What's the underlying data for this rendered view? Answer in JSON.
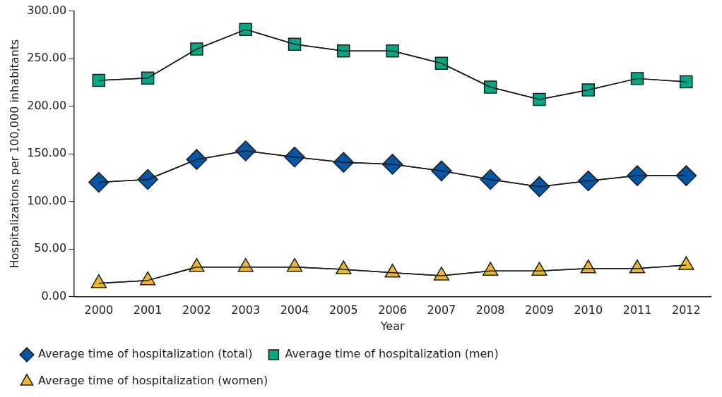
{
  "chart_data": {
    "type": "line",
    "xlabel": "Year",
    "ylabel": "Hospitalizations per 100,000 inhabitants",
    "categories": [
      "2000",
      "2001",
      "2002",
      "2003",
      "2004",
      "2005",
      "2006",
      "2007",
      "2008",
      "2009",
      "2010",
      "2011",
      "2012"
    ],
    "series": [
      {
        "name": "Average time of hospitalization (total)",
        "color": "#0057a6",
        "marker": "diamond",
        "values": [
          120,
          123,
          144,
          153,
          146.5,
          141,
          139,
          132,
          123,
          115.5,
          121.5,
          127,
          127
        ]
      },
      {
        "name": "Average time of hospitalization (men)",
        "color": "#00a884",
        "marker": "square",
        "values": [
          227,
          229.5,
          260,
          280.5,
          265,
          258,
          258,
          245,
          220,
          207,
          217,
          229,
          225.5
        ]
      },
      {
        "name": "Average time of hospitalization (women)",
        "color": "#f0b921",
        "marker": "triangle",
        "values": [
          14,
          17,
          31,
          31,
          31,
          28.5,
          25,
          22,
          27,
          27,
          29.5,
          29.5,
          33
        ]
      }
    ],
    "ylim": [
      0,
      300
    ],
    "yticks": [
      {
        "value": 0,
        "label": "0.00"
      },
      {
        "value": 50,
        "label": "50.00"
      },
      {
        "value": 100,
        "label": "100.00"
      },
      {
        "value": 150,
        "label": "150.00"
      },
      {
        "value": 200,
        "label": "200.00"
      },
      {
        "value": 250,
        "label": "250.00"
      },
      {
        "value": 300,
        "label": "300.00"
      }
    ],
    "grid": false,
    "legend": "bottom",
    "line_style": "solid"
  }
}
